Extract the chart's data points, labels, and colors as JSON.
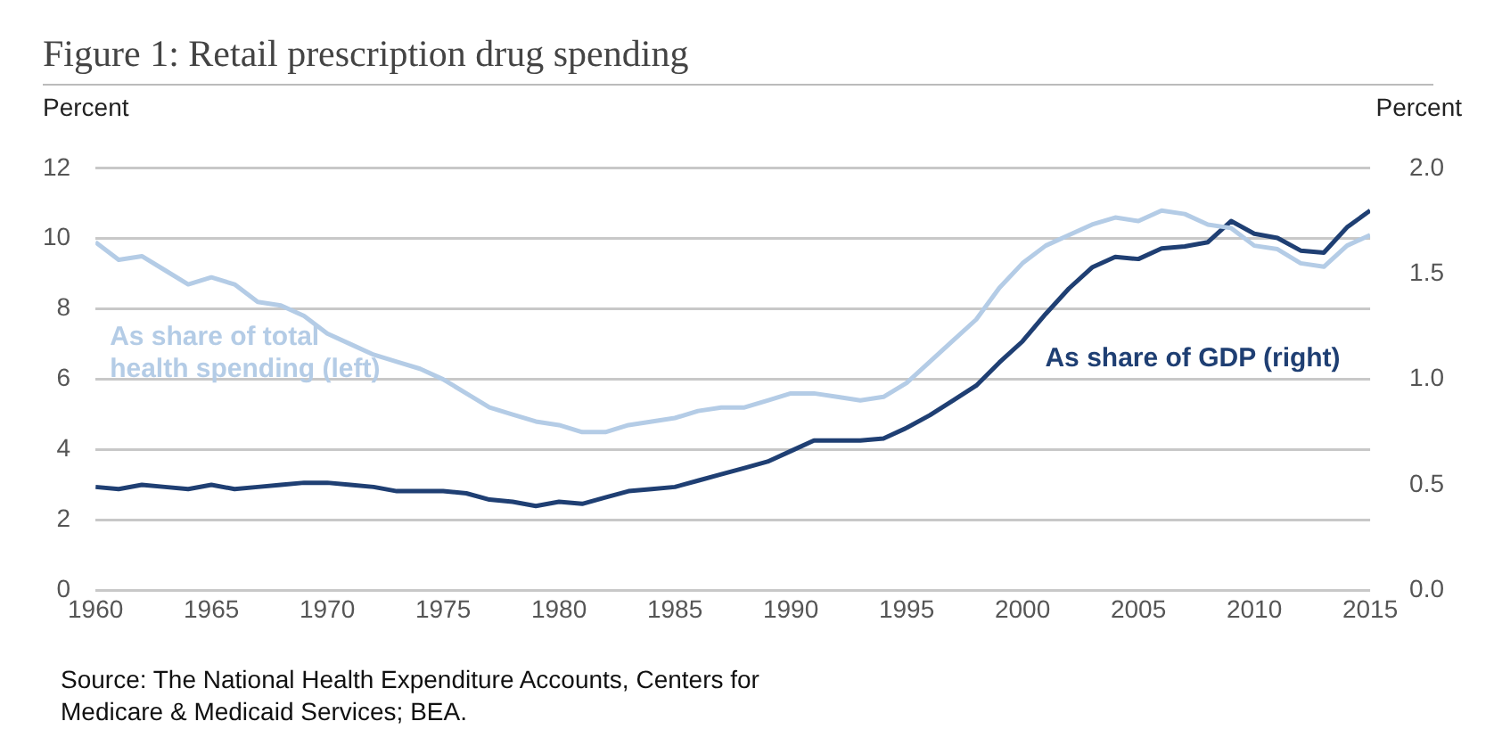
{
  "chart_data": {
    "type": "line",
    "title": "Figure 1: Retail prescription drug spending",
    "ylabel": "Percent",
    "y2label": "Percent",
    "x": [
      1960,
      1961,
      1962,
      1963,
      1964,
      1965,
      1966,
      1967,
      1968,
      1969,
      1970,
      1971,
      1972,
      1973,
      1974,
      1975,
      1976,
      1977,
      1978,
      1979,
      1980,
      1981,
      1982,
      1983,
      1984,
      1985,
      1986,
      1987,
      1988,
      1989,
      1990,
      1991,
      1992,
      1993,
      1994,
      1995,
      1996,
      1997,
      1998,
      1999,
      2000,
      2001,
      2002,
      2003,
      2004,
      2005,
      2006,
      2007,
      2008,
      2009,
      2010,
      2011,
      2012,
      2013,
      2014,
      2015
    ],
    "series": [
      {
        "name": "As share of total health spending (left)",
        "color": "#b4cce6",
        "values": [
          9.9,
          9.4,
          9.5,
          9.1,
          8.7,
          8.9,
          8.7,
          8.2,
          8.1,
          7.8,
          7.3,
          7.0,
          6.7,
          6.5,
          6.3,
          6.0,
          5.6,
          5.2,
          5.0,
          4.8,
          4.7,
          4.5,
          4.5,
          4.7,
          4.8,
          4.9,
          5.1,
          5.2,
          5.2,
          5.4,
          5.6,
          5.6,
          5.5,
          5.4,
          5.5,
          5.9,
          6.5,
          7.1,
          7.7,
          8.6,
          9.3,
          9.8,
          10.1,
          10.4,
          10.6,
          10.5,
          10.8,
          10.7,
          10.4,
          10.3,
          9.8,
          9.7,
          9.3,
          9.2,
          9.8,
          10.1
        ]
      },
      {
        "name": "As share of GDP (right)",
        "color": "#1f3f73",
        "axis": "y2",
        "values": [
          0.49,
          0.48,
          0.5,
          0.49,
          0.48,
          0.5,
          0.48,
          0.49,
          0.5,
          0.51,
          0.51,
          0.5,
          0.49,
          0.47,
          0.47,
          0.47,
          0.46,
          0.43,
          0.42,
          0.4,
          0.42,
          0.41,
          0.44,
          0.47,
          0.48,
          0.49,
          0.52,
          0.55,
          0.58,
          0.61,
          0.66,
          0.71,
          0.71,
          0.71,
          0.72,
          0.77,
          0.83,
          0.9,
          0.97,
          1.08,
          1.18,
          1.31,
          1.43,
          1.53,
          1.58,
          1.57,
          1.62,
          1.63,
          1.65,
          1.75,
          1.69,
          1.67,
          1.61,
          1.6,
          1.72,
          1.8
        ]
      }
    ],
    "xlim": [
      1960,
      2015
    ],
    "xticks": [
      1960,
      1965,
      1970,
      1975,
      1980,
      1985,
      1990,
      1995,
      2000,
      2005,
      2010,
      2015
    ],
    "ylim": [
      0,
      12
    ],
    "yticks": [
      0,
      2,
      4,
      6,
      8,
      10,
      12
    ],
    "y2lim": [
      0,
      2
    ],
    "y2ticks": [
      {
        "value": 0,
        "label": "0.0"
      },
      {
        "value": 0.5,
        "label": "0.5"
      },
      {
        "value": 1,
        "label": "1.0"
      },
      {
        "value": 1.5,
        "label": "1.5"
      },
      {
        "value": 2,
        "label": "2.0"
      }
    ],
    "grid": "y",
    "legend": false,
    "marker": "none",
    "line_style": "solid",
    "annotations": [
      "Source: The National Health Expenditure Accounts, Centers for Medicare & Medicaid Services; BEA."
    ]
  }
}
